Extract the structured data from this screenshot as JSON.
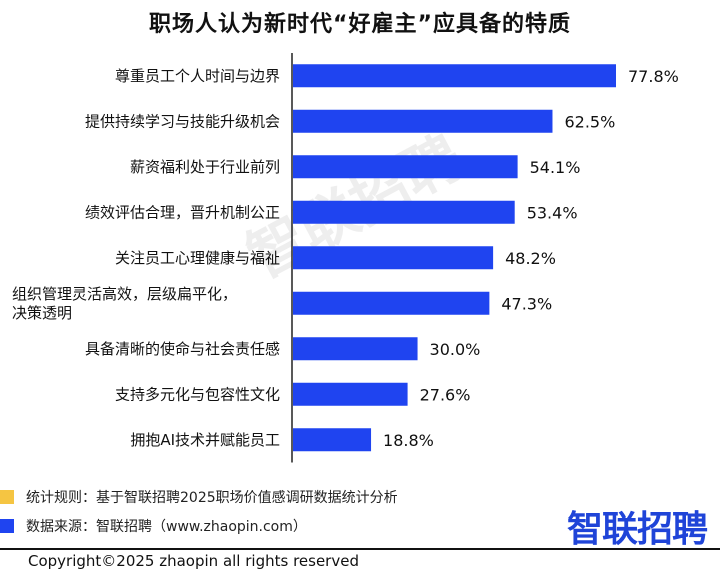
{
  "chart_data": {
    "type": "bar",
    "orientation": "horizontal",
    "title": "职场人认为新时代“好雇主”应具备的特质",
    "categories": [
      "尊重员工个人时间与边界",
      "提供持续学习与技能升级机会",
      "薪资福利处于行业前列",
      "绩效评估合理，晋升机制公正",
      "关注员工心理健康与福祉",
      "组织管理灵活高效，层级扁平化，决策透明",
      "具备清晰的使命与社会责任感",
      "支持多元化与包容性文化",
      "拥抱AI技术并赋能员工"
    ],
    "category_lines": [
      [
        "尊重员工个人时间与边界"
      ],
      [
        "提供持续学习与技能升级机会"
      ],
      [
        "薪资福利处于行业前列"
      ],
      [
        "绩效评估合理，晋升机制公正"
      ],
      [
        "关注员工心理健康与福祉"
      ],
      [
        "组织管理灵活高效，层级扁平化，",
        "决策透明"
      ],
      [
        "具备清晰的使命与社会责任感"
      ],
      [
        "支持多元化与包容性文化"
      ],
      [
        "拥抱AI技术并赋能员工"
      ]
    ],
    "values": [
      77.8,
      62.5,
      54.1,
      53.4,
      48.2,
      47.3,
      30.0,
      27.6,
      18.8
    ],
    "value_labels": [
      "77.8%",
      "62.5%",
      "54.1%",
      "53.4%",
      "48.2%",
      "47.3%",
      "30.0%",
      "27.6%",
      "18.8%"
    ],
    "unit": "%",
    "xlim": [
      0,
      80
    ],
    "grid": false,
    "bar_color": "#1f44f0"
  },
  "footer": {
    "rule_label": "统计规则：基于智联招聘2025职场价值感调研数据统计分析",
    "rule_color": "#f5c542",
    "source_label": "数据来源：智联招聘（www.zhaopin.com）",
    "source_color": "#1f44f0"
  },
  "watermark": "智联招聘",
  "logo": "智联招聘",
  "copyright": "Copyright©2025 zhaopin all rights reserved"
}
